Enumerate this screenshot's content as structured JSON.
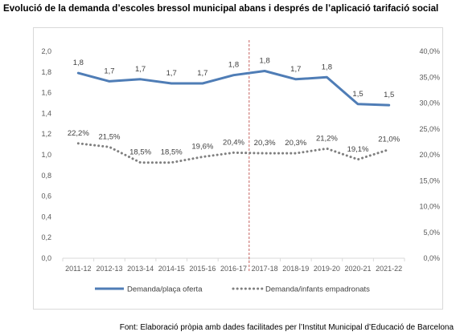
{
  "title": "Evolució de la demanda d’escoles bressol municipal abans i després de l’aplicació tarifació social",
  "source": "Font: Elaboració pròpia amb dades facilitades per l’Institut Municipal d’Educació de Barcelona",
  "chart_data": {
    "type": "line",
    "categories": [
      "2011-12",
      "2012-13",
      "2013-14",
      "2014-15",
      "2015-16",
      "2016-17",
      "2017-18",
      "2018-19",
      "2019-20",
      "2020-21",
      "2021-22"
    ],
    "series": [
      {
        "name": "Demanda/plaça oferta",
        "axis": "left",
        "values": [
          1.79,
          1.71,
          1.73,
          1.69,
          1.69,
          1.77,
          1.81,
          1.73,
          1.75,
          1.49,
          1.48
        ],
        "labels": [
          "1,8",
          "1,7",
          "1,7",
          "1,7",
          "1,7",
          "1,8",
          "1,8",
          "1,7",
          "1,8",
          "1,5",
          "1,5"
        ],
        "color": "#4f7db6",
        "style": "solid"
      },
      {
        "name": "Demanda/infants empadronats",
        "axis": "right",
        "values": [
          22.2,
          21.5,
          18.5,
          18.5,
          19.6,
          20.4,
          20.3,
          20.3,
          21.2,
          19.1,
          21.0
        ],
        "labels": [
          "22,2%",
          "21,5%",
          "18,5%",
          "18,5%",
          "19,6%",
          "20,4%",
          "20,3%",
          "20,3%",
          "21,2%",
          "19,1%",
          "21,0%"
        ],
        "color": "#7f7f7f",
        "style": "dotted"
      }
    ],
    "y_left": {
      "min": 0,
      "max": 2.0,
      "ticks": [
        0,
        0.2,
        0.4,
        0.6,
        0.8,
        1.0,
        1.2,
        1.4,
        1.6,
        1.8,
        2.0
      ],
      "tick_labels": [
        "0,0",
        "0,2",
        "0,4",
        "0,6",
        "0,8",
        "1,0",
        "1,2",
        "1,4",
        "1,6",
        "1,8",
        "2,0"
      ]
    },
    "y_right": {
      "min": 0,
      "max": 40,
      "ticks": [
        0,
        5,
        10,
        15,
        20,
        25,
        30,
        35,
        40
      ],
      "tick_labels": [
        "0,0%",
        "5,0%",
        "10,0%",
        "15,0%",
        "20,0%",
        "25,0%",
        "30,0%",
        "35,0%",
        "40,0%"
      ]
    },
    "reference_line": {
      "between": [
        "2016-17",
        "2017-18"
      ],
      "color": "#c0504d",
      "style": "dashed"
    },
    "grid": false,
    "legend_position": "bottom"
  }
}
